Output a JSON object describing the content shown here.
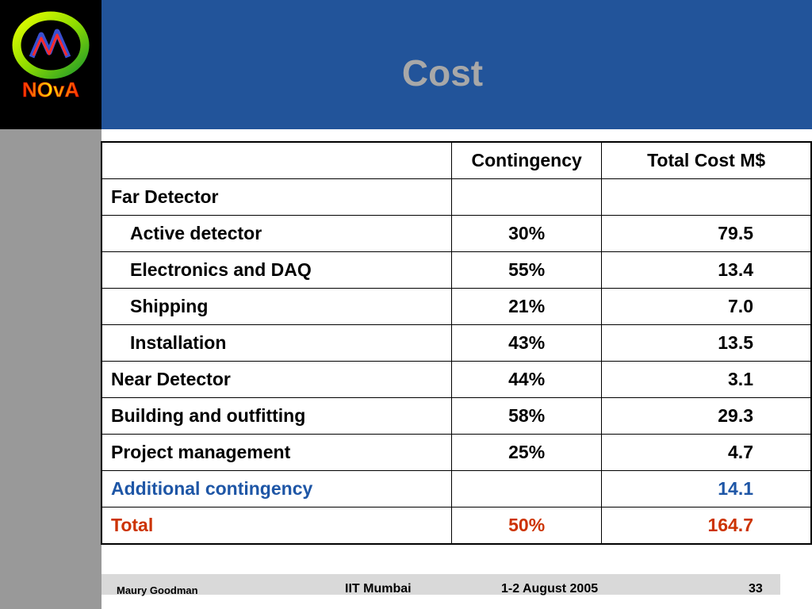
{
  "slide": {
    "title": "Cost",
    "logo_text": "NOvA"
  },
  "table": {
    "headers": [
      "",
      "Contingency",
      "Total Cost M$"
    ],
    "rows": [
      {
        "label": "Far Detector",
        "contingency": "",
        "total": ""
      },
      {
        "label": "Active detector",
        "contingency": "30%",
        "total": "79.5"
      },
      {
        "label": "Electronics and DAQ",
        "contingency": "55%",
        "total": "13.4"
      },
      {
        "label": "Shipping",
        "contingency": "21%",
        "total": "7.0"
      },
      {
        "label": "Installation",
        "contingency": "43%",
        "total": "13.5"
      },
      {
        "label": "Near Detector",
        "contingency": "44%",
        "total": "3.1"
      },
      {
        "label": "Building and outfitting",
        "contingency": "58%",
        "total": "29.3"
      },
      {
        "label": "Project management",
        "contingency": "25%",
        "total": "4.7"
      },
      {
        "label": "Additional contingency",
        "contingency": "",
        "total": "14.1"
      },
      {
        "label": "Total",
        "contingency": "50%",
        "total": "164.7"
      }
    ]
  },
  "footer": {
    "author": "Maury Goodman",
    "venue": "IIT Mumbai",
    "date": "1-2 August 2005",
    "page": "33"
  },
  "colors": {
    "header_bg": "#22549a",
    "title": "#a8a8a8",
    "additional_row": "#1e56a6",
    "total_row": "#cc3300"
  }
}
